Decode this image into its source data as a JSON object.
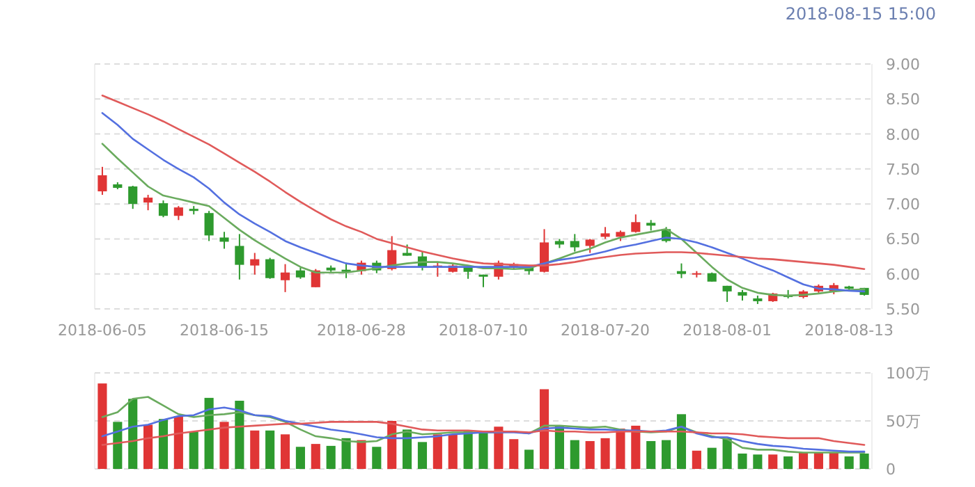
{
  "chart_data": [
    {
      "type": "candlestick",
      "annotations": [
        "2018-08-15 15:00"
      ],
      "grid": "y",
      "ylim": [
        5.5,
        9.0
      ],
      "yticks": [
        {
          "value": 5.5,
          "label": "5.50"
        },
        {
          "value": 6,
          "label": "6.00"
        },
        {
          "value": 6.5,
          "label": "6.50"
        },
        {
          "value": 7,
          "label": "7.00"
        },
        {
          "value": 7.5,
          "label": "7.50"
        },
        {
          "value": 8,
          "label": "8.00"
        },
        {
          "value": 8.5,
          "label": "8.50"
        },
        {
          "value": 9,
          "label": "9.00"
        }
      ],
      "categories": [
        "2018-06-05",
        null,
        null,
        null,
        null,
        null,
        null,
        null,
        "2018-06-15",
        null,
        null,
        null,
        null,
        null,
        null,
        null,
        null,
        "2018-06-28",
        null,
        null,
        null,
        null,
        null,
        null,
        null,
        "2018-07-10",
        null,
        null,
        null,
        null,
        null,
        null,
        null,
        "2018-07-20",
        null,
        null,
        null,
        null,
        null,
        null,
        null,
        "2018-08-01",
        null,
        null,
        null,
        null,
        null,
        null,
        null,
        "2018-08-13",
        null
      ],
      "ohlc": [
        [
          7.18,
          7.53,
          7.13,
          7.41
        ],
        [
          7.28,
          7.31,
          7.21,
          7.23
        ],
        [
          7.25,
          7.26,
          6.93,
          7.0
        ],
        [
          7.02,
          7.13,
          6.91,
          7.09
        ],
        [
          7.01,
          7.05,
          6.81,
          6.83
        ],
        [
          6.83,
          6.97,
          6.77,
          6.95
        ],
        [
          6.93,
          6.97,
          6.85,
          6.9
        ],
        [
          6.87,
          6.9,
          6.47,
          6.55
        ],
        [
          6.52,
          6.6,
          6.36,
          6.46
        ],
        [
          6.4,
          6.57,
          5.92,
          6.13
        ],
        [
          6.12,
          6.3,
          5.99,
          6.21
        ],
        [
          6.21,
          6.23,
          5.93,
          5.94
        ],
        [
          5.91,
          6.14,
          5.74,
          6.02
        ],
        [
          6.05,
          6.09,
          5.93,
          5.95
        ],
        [
          5.81,
          6.07,
          5.81,
          6.05
        ],
        [
          6.09,
          6.12,
          6.03,
          6.05
        ],
        [
          6.06,
          6.16,
          5.94,
          6.03
        ],
        [
          6.04,
          6.19,
          5.99,
          6.16
        ],
        [
          6.16,
          6.19,
          6.01,
          6.05
        ],
        [
          6.07,
          6.54,
          6.05,
          6.34
        ],
        [
          6.3,
          6.42,
          6.26,
          6.26
        ],
        [
          6.25,
          6.32,
          6.05,
          6.09
        ],
        [
          6.09,
          6.16,
          5.96,
          6.12
        ],
        [
          6.03,
          6.14,
          6.02,
          6.12
        ],
        [
          6.11,
          6.12,
          5.93,
          6.03
        ],
        [
          5.99,
          5.99,
          5.81,
          5.96
        ],
        [
          5.96,
          6.19,
          5.92,
          6.16
        ],
        [
          6.09,
          6.16,
          6.07,
          6.14
        ],
        [
          6.09,
          6.12,
          5.99,
          6.04
        ],
        [
          6.03,
          6.64,
          6.02,
          6.45
        ],
        [
          6.47,
          6.5,
          6.37,
          6.42
        ],
        [
          6.47,
          6.57,
          6.32,
          6.38
        ],
        [
          6.4,
          6.5,
          6.3,
          6.49
        ],
        [
          6.53,
          6.67,
          6.5,
          6.58
        ],
        [
          6.53,
          6.62,
          6.47,
          6.6
        ],
        [
          6.6,
          6.85,
          6.59,
          6.74
        ],
        [
          6.73,
          6.77,
          6.62,
          6.69
        ],
        [
          6.64,
          6.67,
          6.45,
          6.47
        ],
        [
          6.04,
          6.15,
          5.94,
          6.0
        ],
        [
          5.99,
          6.04,
          5.95,
          6.01
        ],
        [
          6.01,
          6.02,
          5.89,
          5.89
        ],
        [
          5.83,
          5.83,
          5.6,
          5.75
        ],
        [
          5.74,
          5.77,
          5.62,
          5.69
        ],
        [
          5.65,
          5.69,
          5.57,
          5.61
        ],
        [
          5.61,
          5.73,
          5.6,
          5.72
        ],
        [
          5.7,
          5.77,
          5.65,
          5.67
        ],
        [
          5.67,
          5.77,
          5.65,
          5.75
        ],
        [
          5.75,
          5.85,
          5.73,
          5.83
        ],
        [
          5.75,
          5.87,
          5.71,
          5.84
        ],
        [
          5.82,
          5.83,
          5.77,
          5.79
        ],
        [
          5.8,
          5.8,
          5.69,
          5.7
        ]
      ],
      "colors": [
        "#e03535",
        "#2e9a2e",
        "#2e9a2e",
        "#e03535",
        "#2e9a2e",
        "#e03535",
        "#2e9a2e",
        "#2e9a2e",
        "#2e9a2e",
        "#2e9a2e",
        "#e03535",
        "#2e9a2e",
        "#e03535",
        "#2e9a2e",
        "#e03535",
        "#2e9a2e",
        "#2e9a2e",
        "#e03535",
        "#2e9a2e",
        "#e03535",
        "#2e9a2e",
        "#2e9a2e",
        "#e03535",
        "#e03535",
        "#2e9a2e",
        "#2e9a2e",
        "#e03535",
        "#e03535",
        "#2e9a2e",
        "#e03535",
        "#2e9a2e",
        "#2e9a2e",
        "#e03535",
        "#e03535",
        "#e03535",
        "#e03535",
        "#2e9a2e",
        "#2e9a2e",
        "#2e9a2e",
        "#e03535",
        "#2e9a2e",
        "#2e9a2e",
        "#2e9a2e",
        "#2e9a2e",
        "#e03535",
        "#2e9a2e",
        "#e03535",
        "#e03535",
        "#e03535",
        "#2e9a2e",
        "#2e9a2e"
      ],
      "series": [
        {
          "type": "line",
          "color": "#6aab5e",
          "values": [
            7.86,
            7.65,
            7.45,
            7.25,
            7.12,
            7.07,
            7.02,
            6.97,
            6.8,
            6.63,
            6.48,
            6.35,
            6.22,
            6.1,
            6.02,
            6.02,
            6.02,
            6.05,
            6.08,
            6.12,
            6.15,
            6.17,
            6.17,
            6.15,
            6.12,
            6.08,
            6.08,
            6.07,
            6.08,
            6.15,
            6.22,
            6.3,
            6.36,
            6.45,
            6.52,
            6.56,
            6.6,
            6.64,
            6.5,
            6.3,
            6.1,
            5.92,
            5.8,
            5.73,
            5.7,
            5.69,
            5.7,
            5.72,
            5.75,
            5.77,
            5.78
          ]
        },
        {
          "type": "line",
          "color": "#5470e0",
          "values": [
            8.3,
            8.13,
            7.93,
            7.78,
            7.63,
            7.5,
            7.38,
            7.22,
            7.02,
            6.85,
            6.72,
            6.6,
            6.47,
            6.38,
            6.3,
            6.22,
            6.15,
            6.12,
            6.1,
            6.1,
            6.1,
            6.1,
            6.1,
            6.1,
            6.1,
            6.1,
            6.1,
            6.1,
            6.1,
            6.15,
            6.2,
            6.23,
            6.27,
            6.32,
            6.38,
            6.42,
            6.47,
            6.52,
            6.5,
            6.45,
            6.38,
            6.3,
            6.22,
            6.13,
            6.05,
            5.95,
            5.85,
            5.79,
            5.78,
            5.76,
            5.75
          ]
        },
        {
          "type": "line",
          "color": "#e05a5a",
          "values": [
            8.55,
            8.46,
            8.37,
            8.28,
            8.18,
            8.07,
            7.96,
            7.85,
            7.72,
            7.59,
            7.46,
            7.32,
            7.17,
            7.03,
            6.9,
            6.78,
            6.68,
            6.6,
            6.5,
            6.44,
            6.38,
            6.32,
            6.27,
            6.22,
            6.18,
            6.15,
            6.14,
            6.13,
            6.12,
            6.12,
            6.14,
            6.17,
            6.21,
            6.24,
            6.27,
            6.29,
            6.3,
            6.31,
            6.31,
            6.3,
            6.28,
            6.26,
            6.24,
            6.22,
            6.21,
            6.19,
            6.17,
            6.15,
            6.13,
            6.1,
            6.07
          ]
        }
      ]
    },
    {
      "type": "bar",
      "grid": "y",
      "tick_labels": "y",
      "ylim": [
        0,
        100
      ],
      "yticks": [
        0,
        {
          "value": 50,
          "label": "50万"
        },
        {
          "value": 100,
          "label": "100万"
        }
      ],
      "categories": [
        null,
        null,
        null,
        null,
        null,
        null,
        null,
        null,
        null,
        null,
        null,
        null,
        null,
        null,
        null,
        null,
        null,
        null,
        null,
        null,
        null,
        null,
        null,
        null,
        null,
        null,
        null,
        null,
        null,
        null,
        null,
        null,
        null,
        null,
        null,
        null,
        null,
        null,
        null,
        null,
        null,
        null,
        null,
        null,
        null,
        null,
        null,
        null,
        null,
        null,
        null
      ],
      "series": [
        {
          "type": "bar",
          "values": [
            89,
            49,
            73,
            46,
            52,
            55,
            39,
            74,
            49,
            71,
            40,
            40,
            36,
            23,
            26,
            24,
            32,
            30,
            23,
            50,
            41,
            28,
            36,
            36,
            39,
            38,
            44,
            31,
            20,
            83,
            45,
            30,
            29,
            32,
            42,
            45,
            29,
            30,
            57,
            19,
            22,
            32,
            16,
            15,
            15,
            13,
            17,
            17,
            17,
            13,
            16
          ],
          "colors": [
            "#e03535",
            "#2e9a2e",
            "#2e9a2e",
            "#e03535",
            "#2e9a2e",
            "#e03535",
            "#2e9a2e",
            "#2e9a2e",
            "#e03535",
            "#2e9a2e",
            "#e03535",
            "#2e9a2e",
            "#e03535",
            "#2e9a2e",
            "#e03535",
            "#2e9a2e",
            "#2e9a2e",
            "#e03535",
            "#2e9a2e",
            "#e03535",
            "#2e9a2e",
            "#2e9a2e",
            "#e03535",
            "#e03535",
            "#2e9a2e",
            "#2e9a2e",
            "#e03535",
            "#e03535",
            "#2e9a2e",
            "#e03535",
            "#2e9a2e",
            "#2e9a2e",
            "#e03535",
            "#e03535",
            "#e03535",
            "#e03535",
            "#2e9a2e",
            "#2e9a2e",
            "#2e9a2e",
            "#e03535",
            "#2e9a2e",
            "#2e9a2e",
            "#2e9a2e",
            "#2e9a2e",
            "#e03535",
            "#2e9a2e",
            "#e03535",
            "#e03535",
            "#e03535",
            "#2e9a2e",
            "#2e9a2e"
          ]
        },
        {
          "type": "line",
          "color": "#6aab5e",
          "values": [
            54,
            59,
            73,
            75,
            66,
            57,
            54,
            56,
            57,
            59,
            56,
            54,
            49,
            41,
            34,
            32,
            29,
            28,
            29,
            36,
            39,
            36,
            37,
            38,
            38,
            38,
            38,
            39,
            37,
            45,
            45,
            44,
            43,
            44,
            41,
            39,
            38,
            39,
            44,
            38,
            34,
            31,
            22,
            20,
            20,
            18,
            17,
            17,
            17,
            17,
            17
          ]
        },
        {
          "type": "line",
          "color": "#5470e0",
          "values": [
            34,
            39,
            44,
            46,
            51,
            55,
            56,
            62,
            64,
            61,
            56,
            55,
            50,
            47,
            44,
            41,
            39,
            36,
            33,
            32,
            32,
            33,
            34,
            36,
            37,
            38,
            38,
            38,
            37,
            42,
            43,
            42,
            41,
            41,
            40,
            40,
            39,
            40,
            44,
            37,
            33,
            33,
            29,
            26,
            24,
            23,
            21,
            20,
            19,
            18,
            18
          ]
        },
        {
          "type": "line",
          "color": "#e05a5a",
          "values": [
            25,
            27,
            29,
            32,
            34,
            37,
            39,
            41,
            43,
            44,
            45,
            46,
            47,
            47,
            48,
            49,
            49,
            49,
            49,
            47,
            44,
            41,
            40,
            40,
            40,
            39,
            39,
            39,
            38,
            40,
            39,
            39,
            38,
            38,
            39,
            39,
            39,
            39,
            39,
            38,
            37,
            37,
            36,
            34,
            33,
            32,
            32,
            32,
            29,
            27,
            25
          ]
        }
      ]
    }
  ]
}
